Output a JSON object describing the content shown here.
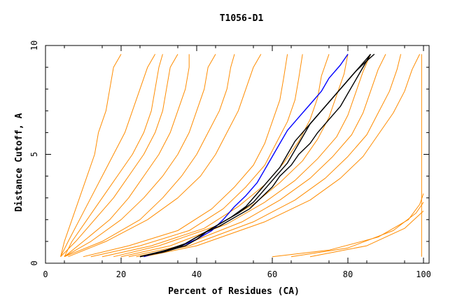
{
  "chart_data": {
    "type": "line",
    "title": "T1056-D1",
    "xlabel": "Percent of Residues (CA)",
    "ylabel": "Distance Cutoff, A",
    "xlim": [
      0,
      100
    ],
    "ylim": [
      0,
      10
    ],
    "x_ticks": [
      "0",
      "20",
      "40",
      "60",
      "80",
      "100"
    ],
    "y_ticks": [
      "0",
      "5",
      "10"
    ],
    "grid": false,
    "colors": {
      "models": "#ff8c00",
      "highlight_blue": "#0000ff",
      "highlight_black": "#000000"
    },
    "series": [
      {
        "color": "#ff8c00",
        "points": [
          [
            4,
            0.3
          ],
          [
            5,
            1
          ],
          [
            7,
            2
          ],
          [
            9,
            3
          ],
          [
            11,
            4
          ],
          [
            13,
            5
          ],
          [
            14,
            6
          ],
          [
            16,
            7
          ],
          [
            17,
            8
          ],
          [
            18,
            9
          ],
          [
            20,
            9.6
          ]
        ]
      },
      {
        "color": "#ff8c00",
        "points": [
          [
            4,
            0.3
          ],
          [
            6,
            1
          ],
          [
            9,
            2
          ],
          [
            12,
            3
          ],
          [
            15,
            4
          ],
          [
            18,
            5
          ],
          [
            21,
            6
          ],
          [
            23,
            7
          ],
          [
            25,
            8
          ],
          [
            27,
            9
          ],
          [
            29,
            9.6
          ]
        ]
      },
      {
        "color": "#ff8c00",
        "points": [
          [
            5,
            0.3
          ],
          [
            7,
            1
          ],
          [
            11,
            2
          ],
          [
            15,
            3
          ],
          [
            19,
            4
          ],
          [
            23,
            5
          ],
          [
            26,
            6
          ],
          [
            28,
            7
          ],
          [
            29,
            8
          ],
          [
            30,
            9
          ],
          [
            31,
            9.6
          ]
        ]
      },
      {
        "color": "#ff8c00",
        "points": [
          [
            4,
            0.3
          ],
          [
            8,
            1
          ],
          [
            13,
            2
          ],
          [
            18,
            3
          ],
          [
            22,
            4
          ],
          [
            26,
            5
          ],
          [
            29,
            6
          ],
          [
            31,
            7
          ],
          [
            32,
            8
          ],
          [
            33,
            9
          ],
          [
            35,
            9.6
          ]
        ]
      },
      {
        "color": "#ff8c00",
        "points": [
          [
            5,
            0.3
          ],
          [
            10,
            1
          ],
          [
            17,
            2
          ],
          [
            22,
            3
          ],
          [
            26,
            4
          ],
          [
            30,
            5
          ],
          [
            33,
            6
          ],
          [
            35,
            7
          ],
          [
            37,
            8
          ],
          [
            38,
            9
          ],
          [
            38,
            9.6
          ]
        ]
      },
      {
        "color": "#ff8c00",
        "points": [
          [
            5,
            0.3
          ],
          [
            12,
            1
          ],
          [
            20,
            2
          ],
          [
            26,
            3
          ],
          [
            31,
            4
          ],
          [
            35,
            5
          ],
          [
            38,
            6
          ],
          [
            40,
            7
          ],
          [
            42,
            8
          ],
          [
            43,
            9
          ],
          [
            45,
            9.6
          ]
        ]
      },
      {
        "color": "#ff8c00",
        "points": [
          [
            5,
            0.3
          ],
          [
            15,
            1
          ],
          [
            25,
            2
          ],
          [
            31,
            3
          ],
          [
            36,
            4
          ],
          [
            40,
            5
          ],
          [
            43,
            6
          ],
          [
            46,
            7
          ],
          [
            48,
            8
          ],
          [
            49,
            9
          ],
          [
            50,
            9.6
          ]
        ]
      },
      {
        "color": "#ff8c00",
        "points": [
          [
            6,
            0.3
          ],
          [
            16,
            1
          ],
          [
            27,
            2
          ],
          [
            35,
            3
          ],
          [
            41,
            4
          ],
          [
            45,
            5
          ],
          [
            48,
            6
          ],
          [
            51,
            7
          ],
          [
            53,
            8
          ],
          [
            55,
            9
          ],
          [
            57,
            9.6
          ]
        ]
      },
      {
        "color": "#ff8c00",
        "points": [
          [
            10,
            0.3
          ],
          [
            22,
            0.8
          ],
          [
            35,
            1.5
          ],
          [
            44,
            2.5
          ],
          [
            50,
            3.5
          ],
          [
            55,
            4.5
          ],
          [
            58,
            5.5
          ],
          [
            60,
            6.5
          ],
          [
            62,
            7.5
          ],
          [
            63,
            8.5
          ],
          [
            64,
            9.6
          ]
        ]
      },
      {
        "color": "#ff8c00",
        "points": [
          [
            12,
            0.3
          ],
          [
            25,
            0.8
          ],
          [
            38,
            1.5
          ],
          [
            47,
            2.5
          ],
          [
            53,
            3.5
          ],
          [
            58,
            4.5
          ],
          [
            61,
            5.5
          ],
          [
            64,
            6.5
          ],
          [
            66,
            7.5
          ],
          [
            67,
            8.5
          ],
          [
            68,
            9.6
          ]
        ]
      },
      {
        "color": "#ff8c00",
        "points": [
          [
            15,
            0.3
          ],
          [
            28,
            0.8
          ],
          [
            42,
            1.6
          ],
          [
            51,
            2.6
          ],
          [
            58,
            3.6
          ],
          [
            63,
            4.6
          ],
          [
            67,
            5.6
          ],
          [
            70,
            6.6
          ],
          [
            72,
            7.6
          ],
          [
            73,
            8.6
          ],
          [
            75,
            9.6
          ]
        ]
      },
      {
        "color": "#ff8c00",
        "points": [
          [
            18,
            0.3
          ],
          [
            30,
            0.8
          ],
          [
            45,
            1.7
          ],
          [
            55,
            2.7
          ],
          [
            62,
            3.7
          ],
          [
            68,
            4.7
          ],
          [
            72,
            5.7
          ],
          [
            75,
            6.7
          ],
          [
            77,
            7.7
          ],
          [
            79,
            8.7
          ],
          [
            80,
            9.6
          ]
        ]
      },
      {
        "color": "#ff8c00",
        "points": [
          [
            20,
            0.3
          ],
          [
            33,
            0.8
          ],
          [
            48,
            1.8
          ],
          [
            58,
            2.8
          ],
          [
            66,
            3.8
          ],
          [
            72,
            4.8
          ],
          [
            77,
            5.8
          ],
          [
            80,
            6.8
          ],
          [
            82,
            7.8
          ],
          [
            84,
            8.8
          ],
          [
            86,
            9.6
          ]
        ]
      },
      {
        "color": "#ff8c00",
        "points": [
          [
            22,
            0.3
          ],
          [
            36,
            0.8
          ],
          [
            52,
            1.9
          ],
          [
            62,
            2.9
          ],
          [
            70,
            3.9
          ],
          [
            76,
            4.9
          ],
          [
            81,
            5.9
          ],
          [
            84,
            6.9
          ],
          [
            86,
            7.9
          ],
          [
            88,
            8.9
          ],
          [
            90,
            9.6
          ]
        ]
      },
      {
        "color": "#ff8c00",
        "points": [
          [
            24,
            0.3
          ],
          [
            38,
            0.8
          ],
          [
            55,
            1.9
          ],
          [
            66,
            2.9
          ],
          [
            74,
            3.9
          ],
          [
            80,
            4.9
          ],
          [
            85,
            5.9
          ],
          [
            88,
            6.9
          ],
          [
            91,
            7.9
          ],
          [
            93,
            8.9
          ],
          [
            94,
            9.6
          ]
        ]
      },
      {
        "color": "#ff8c00",
        "points": [
          [
            26,
            0.3
          ],
          [
            40,
            0.8
          ],
          [
            58,
            1.9
          ],
          [
            70,
            2.9
          ],
          [
            78,
            3.9
          ],
          [
            84,
            4.9
          ],
          [
            88,
            5.9
          ],
          [
            92,
            6.9
          ],
          [
            95,
            7.9
          ],
          [
            97,
            8.9
          ],
          [
            99,
            9.6
          ]
        ]
      },
      {
        "color": "#ff8c00",
        "points": [
          [
            60,
            0.3
          ],
          [
            75,
            0.6
          ],
          [
            88,
            1.2
          ],
          [
            96,
            2
          ],
          [
            99,
            2.7
          ],
          [
            100,
            3.2
          ]
        ]
      },
      {
        "color": "#ff8c00",
        "points": [
          [
            65,
            0.3
          ],
          [
            80,
            0.7
          ],
          [
            92,
            1.5
          ],
          [
            98,
            2.3
          ],
          [
            100,
            2.8
          ]
        ]
      },
      {
        "color": "#ff8c00",
        "points": [
          [
            70,
            0.3
          ],
          [
            85,
            0.8
          ],
          [
            95,
            1.6
          ],
          [
            100,
            2.4
          ]
        ]
      },
      {
        "color": "#ff8c00",
        "points": [
          [
            99.5,
            0.3
          ],
          [
            99.5,
            9.6
          ]
        ]
      },
      {
        "color": "#0000ff",
        "points": [
          [
            26,
            0.3
          ],
          [
            30,
            0.5
          ],
          [
            36,
            0.8
          ],
          [
            40,
            1.1
          ],
          [
            44,
            1.5
          ],
          [
            47,
            2
          ],
          [
            50,
            2.6
          ],
          [
            53,
            3.1
          ],
          [
            56,
            3.7
          ],
          [
            58,
            4.3
          ],
          [
            60,
            4.9
          ],
          [
            62,
            5.5
          ],
          [
            64,
            6.1
          ],
          [
            67,
            6.7
          ],
          [
            70,
            7.3
          ],
          [
            73,
            7.9
          ],
          [
            75,
            8.5
          ],
          [
            78,
            9.1
          ],
          [
            80,
            9.6
          ]
        ]
      },
      {
        "color": "#000000",
        "points": [
          [
            25,
            0.3
          ],
          [
            30,
            0.5
          ],
          [
            36,
            0.8
          ],
          [
            39,
            1.1
          ],
          [
            42,
            1.4
          ],
          [
            46,
            1.7
          ],
          [
            50,
            2.1
          ],
          [
            54,
            2.5
          ],
          [
            57,
            3
          ],
          [
            60,
            3.5
          ],
          [
            62,
            4
          ],
          [
            65,
            4.5
          ],
          [
            67,
            5
          ],
          [
            70,
            5.5
          ],
          [
            72,
            6
          ],
          [
            75,
            6.6
          ],
          [
            78,
            7.2
          ],
          [
            80,
            7.8
          ],
          [
            82,
            8.4
          ],
          [
            84,
            9
          ],
          [
            86,
            9.6
          ]
        ]
      },
      {
        "color": "#000000",
        "points": [
          [
            25,
            0.3
          ],
          [
            31,
            0.5
          ],
          [
            37,
            0.8
          ],
          [
            40,
            1.1
          ],
          [
            43,
            1.5
          ],
          [
            47,
            1.9
          ],
          [
            51,
            2.3
          ],
          [
            55,
            2.8
          ],
          [
            58,
            3.4
          ],
          [
            61,
            4
          ],
          [
            64,
            4.6
          ],
          [
            66,
            5.2
          ],
          [
            68,
            5.8
          ],
          [
            70,
            6.4
          ],
          [
            73,
            7
          ],
          [
            76,
            7.6
          ],
          [
            79,
            8.2
          ],
          [
            82,
            8.8
          ],
          [
            85,
            9.3
          ],
          [
            87,
            9.6
          ]
        ]
      },
      {
        "color": "#000000",
        "points": [
          [
            25,
            0.3
          ],
          [
            32,
            0.6
          ],
          [
            37,
            0.9
          ],
          [
            41,
            1.3
          ],
          [
            45,
            1.7
          ],
          [
            49,
            2.1
          ],
          [
            53,
            2.6
          ],
          [
            56,
            3.2
          ],
          [
            59,
            3.8
          ],
          [
            62,
            4.4
          ],
          [
            64,
            5
          ],
          [
            66,
            5.6
          ],
          [
            69,
            6.2
          ],
          [
            72,
            6.8
          ],
          [
            75,
            7.4
          ],
          [
            78,
            8
          ],
          [
            81,
            8.6
          ],
          [
            84,
            9.2
          ],
          [
            86,
            9.6
          ]
        ]
      }
    ]
  }
}
